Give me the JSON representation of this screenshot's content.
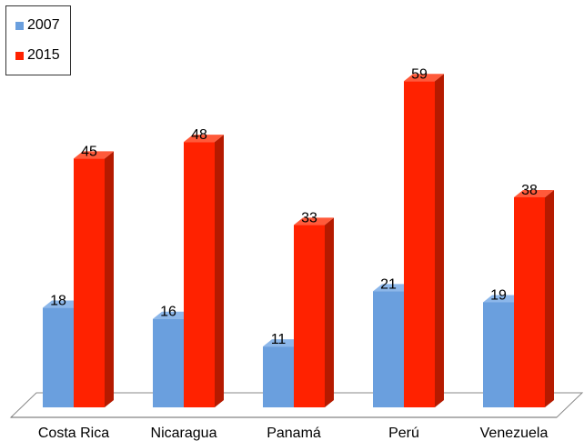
{
  "chart_data": {
    "type": "bar",
    "categories": [
      "Costa Rica",
      "Nicaragua",
      "Panamá",
      "Perú",
      "Venezuela"
    ],
    "series": [
      {
        "name": "2007",
        "values": [
          18,
          16,
          11,
          21,
          19
        ],
        "color": "#6a9fde"
      },
      {
        "name": "2015",
        "values": [
          45,
          48,
          33,
          59,
          38
        ],
        "color": "#ff2200"
      }
    ],
    "ylim": [
      0,
      60
    ],
    "grid": false,
    "legend_position": "top-left",
    "style": "3d"
  }
}
